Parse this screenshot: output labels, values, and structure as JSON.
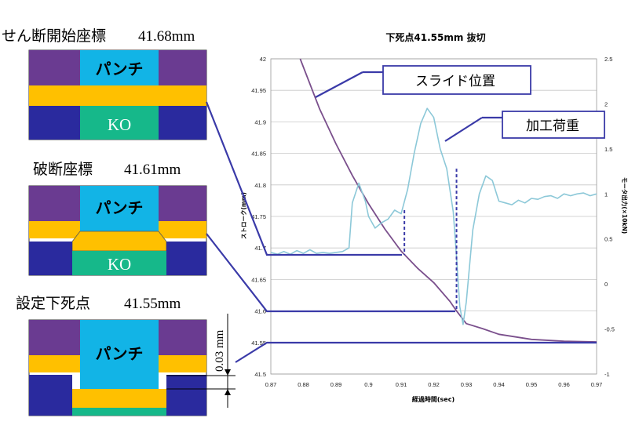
{
  "left_panel": {
    "stages": [
      {
        "title": "せん断開始座標",
        "value": "41.68mm",
        "punch_label": "パンチ",
        "ko_label": "KO"
      },
      {
        "title": "破断座標",
        "value": "41.61mm",
        "punch_label": "パンチ",
        "ko_label": "KO"
      },
      {
        "title": "設定下死点",
        "value": "41.55mm",
        "punch_label": "パンチ",
        "ko_label": ""
      }
    ],
    "dimension_label": "0.03 mm"
  },
  "chart_data": {
    "type": "line",
    "title": "下死点41.55mm  抜切",
    "xlabel": "経過時間(sec)",
    "ylabel": "ストローク(mm)",
    "y2label": "モータ出力(×10kN)",
    "xlim": [
      0.87,
      0.97
    ],
    "ylim": [
      41.5,
      42.0
    ],
    "y2lim": [
      -1.0,
      2.5
    ],
    "x_ticks": [
      "0.87",
      "0.88",
      "0.89",
      "0.9",
      "0.91",
      "0.92",
      "0.93",
      "0.94",
      "0.95",
      "0.96",
      "0.97"
    ],
    "y_ticks": [
      "41.5",
      "41.55",
      "41.6",
      "41.65",
      "41.7",
      "41.75",
      "41.8",
      "41.85",
      "41.9",
      "41.95",
      "42"
    ],
    "y2_ticks": [
      "-1",
      "-0.5",
      "0",
      "0.5",
      "1",
      "1.5",
      "2",
      "2.5"
    ],
    "grid": true,
    "series": [
      {
        "name": "スライド位置",
        "axis": "left",
        "color": "#7a4f8c",
        "x": [
          0.879,
          0.885,
          0.89,
          0.895,
          0.9,
          0.905,
          0.91,
          0.915,
          0.92,
          0.925,
          0.927,
          0.93,
          0.935,
          0.94,
          0.95,
          0.96,
          0.97
        ],
        "y": [
          42.0,
          41.92,
          41.865,
          41.815,
          41.77,
          41.73,
          41.695,
          41.668,
          41.645,
          41.615,
          41.6,
          41.58,
          41.572,
          41.563,
          41.555,
          41.552,
          41.551
        ]
      },
      {
        "name": "加工荷重",
        "axis": "right",
        "color": "#8cc8d8",
        "x": [
          0.87,
          0.872,
          0.874,
          0.876,
          0.878,
          0.88,
          0.882,
          0.884,
          0.886,
          0.888,
          0.89,
          0.892,
          0.894,
          0.895,
          0.897,
          0.899,
          0.9,
          0.902,
          0.904,
          0.906,
          0.908,
          0.91,
          0.912,
          0.914,
          0.916,
          0.918,
          0.92,
          0.922,
          0.924,
          0.926,
          0.927,
          0.928,
          0.929,
          0.93,
          0.932,
          0.934,
          0.936,
          0.938,
          0.94,
          0.942,
          0.944,
          0.946,
          0.948,
          0.95,
          0.952,
          0.954,
          0.956,
          0.958,
          0.96,
          0.962,
          0.964,
          0.966,
          0.968,
          0.97
        ],
        "y": [
          0.35,
          0.33,
          0.36,
          0.33,
          0.37,
          0.34,
          0.38,
          0.34,
          0.35,
          0.34,
          0.35,
          0.36,
          0.4,
          0.9,
          1.12,
          0.92,
          0.75,
          0.62,
          0.68,
          0.72,
          0.82,
          0.78,
          1.05,
          1.45,
          1.78,
          1.95,
          1.85,
          1.5,
          1.28,
          0.8,
          0.3,
          -0.25,
          -0.45,
          -0.2,
          0.6,
          1.0,
          1.2,
          1.15,
          0.92,
          0.9,
          0.88,
          0.93,
          0.9,
          0.95,
          0.94,
          0.97,
          0.98,
          0.95,
          1.0,
          0.98,
          1.0,
          1.01,
          0.98,
          1.0
        ]
      }
    ],
    "annotations": [
      {
        "label": "スライド位置",
        "target_x": 0.884,
        "target_y": 41.93,
        "axis": "left"
      },
      {
        "label": "加工荷重",
        "target_x": 0.925,
        "target_y": 1.6,
        "axis": "right"
      }
    ],
    "markers": [
      {
        "x": 0.911,
        "y_top": 0.82,
        "axis": "right",
        "style": "dashed"
      },
      {
        "x": 0.927,
        "y_top": 1.28,
        "axis": "right",
        "style": "dashed"
      }
    ]
  },
  "colors": {
    "punch": "#12b4e6",
    "die": "#6a3b91",
    "holder": "#ffc000",
    "lower": "#2a2a9e",
    "ko": "#16b88a",
    "accent": "#3a3aa8"
  }
}
